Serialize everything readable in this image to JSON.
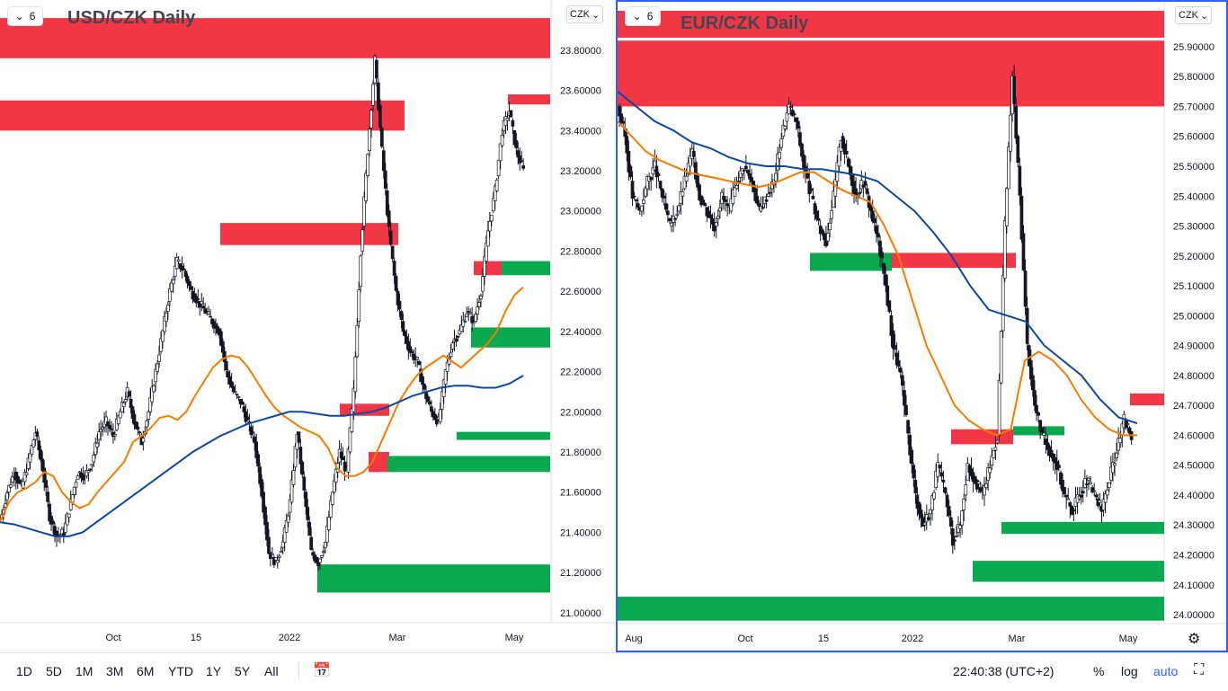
{
  "left_chart": {
    "interval": "6",
    "title": "USD/CZK Daily",
    "currency": "CZK"
  },
  "right_chart": {
    "interval": "6",
    "title": "EUR/CZK Daily",
    "currency": "CZK"
  },
  "chart_data": [
    {
      "type": "candlestick",
      "title": "USD/CZK Daily",
      "ylim": [
        20.95,
        24.05
      ],
      "y_ticks": [
        "21.00000",
        "21.20000",
        "21.40000",
        "21.60000",
        "21.80000",
        "22.00000",
        "22.20000",
        "22.40000",
        "22.60000",
        "22.80000",
        "23.00000",
        "23.20000",
        "23.40000",
        "23.60000",
        "23.80000"
      ],
      "x_ticks": [
        "Oct",
        "15",
        "2022",
        "Mar",
        "May"
      ],
      "close_series": [
        21.45,
        21.6,
        21.7,
        21.62,
        21.75,
        21.9,
        21.72,
        21.48,
        21.38,
        21.4,
        21.55,
        21.7,
        21.68,
        21.75,
        21.9,
        21.95,
        21.88,
        22.0,
        22.1,
        21.95,
        21.85,
        22.0,
        22.2,
        22.4,
        22.6,
        22.75,
        22.7,
        22.6,
        22.55,
        22.5,
        22.45,
        22.4,
        22.2,
        22.1,
        22.05,
        21.95,
        21.85,
        21.6,
        21.3,
        21.25,
        21.35,
        21.55,
        21.9,
        21.6,
        21.3,
        21.25,
        21.35,
        21.6,
        21.8,
        21.7,
        22.1,
        22.8,
        23.3,
        23.75,
        23.3,
        22.9,
        22.6,
        22.4,
        22.3,
        22.25,
        22.1,
        22.0,
        21.95,
        22.2,
        22.35,
        22.4,
        22.5,
        22.45,
        22.6,
        22.9,
        23.1,
        23.4,
        23.5,
        23.3,
        23.2
      ],
      "ma_fast": {
        "color": "#f57c00",
        "values": [
          21.45,
          21.55,
          21.6,
          21.62,
          21.65,
          21.7,
          21.68,
          21.6,
          21.55,
          21.52,
          21.54,
          21.6,
          21.65,
          21.7,
          21.75,
          21.85,
          21.88,
          21.92,
          21.97,
          21.98,
          21.96,
          22.0,
          22.08,
          22.15,
          22.22,
          22.26,
          22.28,
          22.27,
          22.22,
          22.15,
          22.08,
          22.02,
          21.98,
          21.95,
          21.92,
          21.9,
          21.88,
          21.82,
          21.72,
          21.68,
          21.68,
          21.7,
          21.75,
          21.85,
          21.95,
          22.05,
          22.12,
          22.18,
          22.22,
          22.25,
          22.28,
          22.25,
          22.22,
          22.26,
          22.3,
          22.34,
          22.4,
          22.5,
          22.58,
          22.62
        ]
      },
      "ma_slow": {
        "color": "#0d47a1",
        "values": [
          21.45,
          21.44,
          21.42,
          21.4,
          21.38,
          21.38,
          21.4,
          21.45,
          21.5,
          21.55,
          21.6,
          21.65,
          21.7,
          21.75,
          21.8,
          21.84,
          21.88,
          21.91,
          21.94,
          21.96,
          21.98,
          22.0,
          22.0,
          21.99,
          21.98,
          21.98,
          21.99,
          22.0,
          22.02,
          22.05,
          22.08,
          22.1,
          22.12,
          22.13,
          22.13,
          22.12,
          22.12,
          22.14,
          22.18
        ]
      },
      "resistance_zones": [
        [
          23.76,
          23.96
        ],
        [
          23.4,
          23.55
        ],
        [
          22.83,
          22.94
        ],
        [
          21.98,
          22.04
        ],
        [
          22.68,
          22.75
        ],
        [
          23.53,
          23.58
        ],
        [
          21.7,
          21.8
        ]
      ],
      "support_zones": [
        [
          21.1,
          21.24
        ],
        [
          21.7,
          21.78
        ],
        [
          21.86,
          21.9
        ],
        [
          22.32,
          22.42
        ],
        [
          22.68,
          22.75
        ]
      ]
    },
    {
      "type": "candlestick",
      "title": "EUR/CZK Daily",
      "ylim": [
        23.97,
        26.05
      ],
      "y_ticks": [
        "24.00000",
        "24.10000",
        "24.20000",
        "24.30000",
        "24.40000",
        "24.50000",
        "24.60000",
        "24.70000",
        "24.80000",
        "24.90000",
        "25.00000",
        "25.10000",
        "25.20000",
        "25.30000",
        "25.40000",
        "25.50000",
        "25.60000",
        "25.70000",
        "25.80000",
        "25.90000"
      ],
      "x_ticks": [
        "Aug",
        "Oct",
        "15",
        "2022",
        "Mar",
        "May"
      ],
      "close_series": [
        25.7,
        25.6,
        25.4,
        25.35,
        25.45,
        25.5,
        25.4,
        25.3,
        25.35,
        25.45,
        25.55,
        25.4,
        25.35,
        25.3,
        25.4,
        25.35,
        25.45,
        25.5,
        25.45,
        25.35,
        25.4,
        25.45,
        25.6,
        25.7,
        25.65,
        25.5,
        25.4,
        25.3,
        25.25,
        25.4,
        25.6,
        25.5,
        25.4,
        25.45,
        25.35,
        25.25,
        25.1,
        24.9,
        24.8,
        24.6,
        24.4,
        24.3,
        24.35,
        24.5,
        24.4,
        24.25,
        24.3,
        24.5,
        24.45,
        24.4,
        24.5,
        24.6,
        25.3,
        25.8,
        25.4,
        24.9,
        24.7,
        24.6,
        24.55,
        24.5,
        24.4,
        24.35,
        24.4,
        24.45,
        24.4,
        24.35,
        24.45,
        24.55,
        24.65,
        24.6
      ],
      "ma_fast": {
        "color": "#f57c00",
        "values": [
          25.65,
          25.6,
          25.55,
          25.52,
          25.5,
          25.48,
          25.47,
          25.46,
          25.45,
          25.44,
          25.43,
          25.44,
          25.46,
          25.48,
          25.48,
          25.45,
          25.42,
          25.4,
          25.38,
          25.3,
          25.2,
          25.05,
          24.9,
          24.8,
          24.7,
          24.65,
          24.62,
          24.6,
          24.62,
          24.85,
          24.88,
          24.85,
          24.8,
          24.72,
          24.66,
          24.62,
          24.6,
          24.6
        ]
      },
      "ma_slow": {
        "color": "#0d47a1",
        "values": [
          25.75,
          25.7,
          25.65,
          25.62,
          25.58,
          25.56,
          25.53,
          25.51,
          25.5,
          25.5,
          25.49,
          25.49,
          25.48,
          25.47,
          25.45,
          25.4,
          25.35,
          25.28,
          25.2,
          25.1,
          25.02,
          25.0,
          24.98,
          24.9,
          24.85,
          24.8,
          24.72,
          24.66,
          24.64
        ]
      },
      "resistance_zones": [
        [
          25.7,
          25.92
        ],
        [
          25.93,
          26.02
        ],
        [
          25.16,
          25.21
        ],
        [
          24.57,
          24.62
        ],
        [
          24.7,
          24.74
        ]
      ],
      "support_zones": [
        [
          25.15,
          25.21
        ],
        [
          24.6,
          24.63
        ],
        [
          24.27,
          24.31
        ],
        [
          24.11,
          24.18
        ],
        [
          23.98,
          24.06
        ]
      ]
    }
  ],
  "bottom_toolbar": {
    "timeframes": [
      "1D",
      "5D",
      "1M",
      "3M",
      "6M",
      "YTD",
      "1Y",
      "5Y",
      "All"
    ],
    "clock": "22:40:38 (UTC+2)",
    "percent": "%",
    "log": "log",
    "auto": "auto"
  },
  "colors": {
    "up": "#131722",
    "down": "#131722",
    "resistance": "#f23645",
    "support": "#0aa84f",
    "accent": "#2962ff"
  }
}
